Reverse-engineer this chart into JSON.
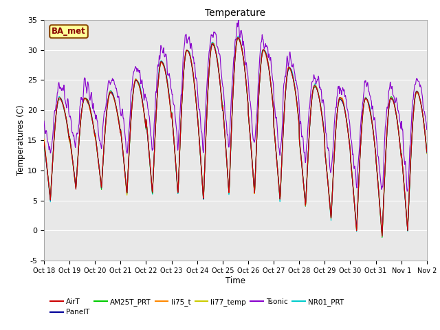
{
  "title": "Temperature",
  "xlabel": "Time",
  "ylabel": "Temperatures (C)",
  "ylim": [
    -5,
    35
  ],
  "ytick_values": [
    -5,
    0,
    5,
    10,
    15,
    20,
    25,
    30,
    35
  ],
  "xtick_labels": [
    "Oct 18",
    "Oct 19",
    "Oct 20",
    "Oct 21",
    "Oct 22",
    "Oct 23",
    "Oct 24",
    "Oct 25",
    "Oct 26",
    "Oct 27",
    "Oct 28",
    "Oct 29",
    "Oct 30",
    "Oct 31",
    "Nov 1",
    "Nov 2"
  ],
  "line_colors": {
    "AirT": "#cc0000",
    "PanelT": "#000099",
    "AM25T_PRT": "#00cc00",
    "li75_t": "#ff8800",
    "li77_temp": "#cccc00",
    "Tsonic": "#8800cc",
    "NR01_PRT": "#00cccc"
  },
  "annotation_text": "BA_met",
  "annotation_bg": "#ffff99",
  "annotation_border": "#884400",
  "annotation_text_color": "#880000",
  "bg_color": "#e8e8e8",
  "n_days": 15,
  "ppd": 96,
  "title_fontsize": 10
}
